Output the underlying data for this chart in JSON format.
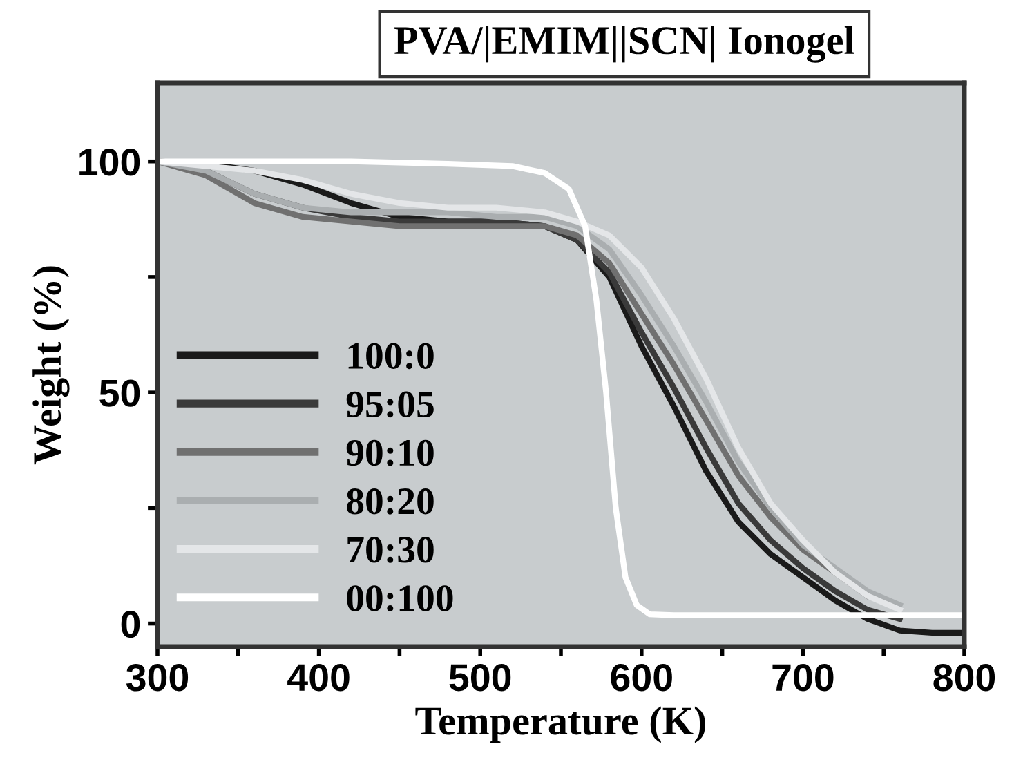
{
  "chart_data": {
    "type": "line",
    "title": "PVA/|EMIM||SCN| Ionogel",
    "xlabel": "Temperature (K)",
    "ylabel": "Weight (%)",
    "x": [
      300,
      330,
      360,
      390,
      420,
      450,
      480,
      510,
      540,
      560,
      580,
      600,
      620,
      640,
      660,
      680,
      700,
      720,
      740,
      760,
      780,
      800
    ],
    "series": [
      {
        "name": "100:0",
        "color": "#1a1a1a",
        "values": [
          100,
          99.5,
          98,
          95,
          91,
          88,
          87,
          87,
          86,
          83,
          75,
          60,
          47,
          33,
          22,
          15,
          10,
          5,
          1,
          -1.5,
          -2,
          -2
        ]
      },
      {
        "name": "95:05",
        "color": "#3a3a3a",
        "values": [
          100,
          98,
          93,
          90,
          88,
          87,
          87,
          87,
          86,
          83,
          76,
          63,
          51,
          38,
          26,
          18,
          12,
          7,
          3,
          1,
          null,
          null
        ]
      },
      {
        "name": "90:10",
        "color": "#707070",
        "values": [
          100,
          97,
          91,
          88,
          87,
          86,
          86,
          86,
          86,
          84,
          78,
          67,
          56,
          44,
          32,
          23,
          16,
          11,
          6,
          null,
          null,
          null
        ]
      },
      {
        "name": "80:20",
        "color": "#aaaeb0",
        "values": [
          100,
          98,
          93,
          90,
          89,
          89,
          89,
          88,
          88,
          86,
          81,
          71,
          60,
          48,
          35,
          25,
          17,
          12,
          7,
          4,
          null,
          null
        ]
      },
      {
        "name": "70:30",
        "color": "#e4e6e8",
        "values": [
          100,
          99,
          98,
          96,
          93,
          91,
          90,
          90,
          89,
          87,
          84,
          77,
          66,
          53,
          38,
          26,
          18,
          11,
          6,
          3,
          null,
          null
        ]
      },
      {
        "name": "00:100",
        "color": "#ffffff",
        "x": [
          300,
          360,
          420,
          480,
          520,
          540,
          555,
          565,
          572,
          578,
          584,
          590,
          597,
          605,
          620,
          660,
          720,
          800
        ],
        "values": [
          100,
          100,
          100,
          99.5,
          99,
          97.5,
          94,
          86,
          70,
          50,
          25,
          10,
          4,
          2,
          1.8,
          1.8,
          1.8,
          1.8
        ]
      }
    ],
    "xlim": [
      300,
      800
    ],
    "ylim": [
      -5,
      117
    ],
    "xticks": [
      300,
      {
        "value": 350,
        "label": null
      },
      400,
      {
        "value": 450,
        "label": null
      },
      500,
      {
        "value": 550,
        "label": null
      },
      600,
      {
        "value": 650,
        "label": null
      },
      700,
      {
        "value": 750,
        "label": null
      },
      800
    ],
    "yticks": [
      0,
      {
        "value": 25,
        "label": null
      },
      50,
      {
        "value": 75,
        "label": null
      },
      100
    ],
    "grid": false,
    "legend": "left",
    "marker": "none",
    "line_style": "solid"
  }
}
